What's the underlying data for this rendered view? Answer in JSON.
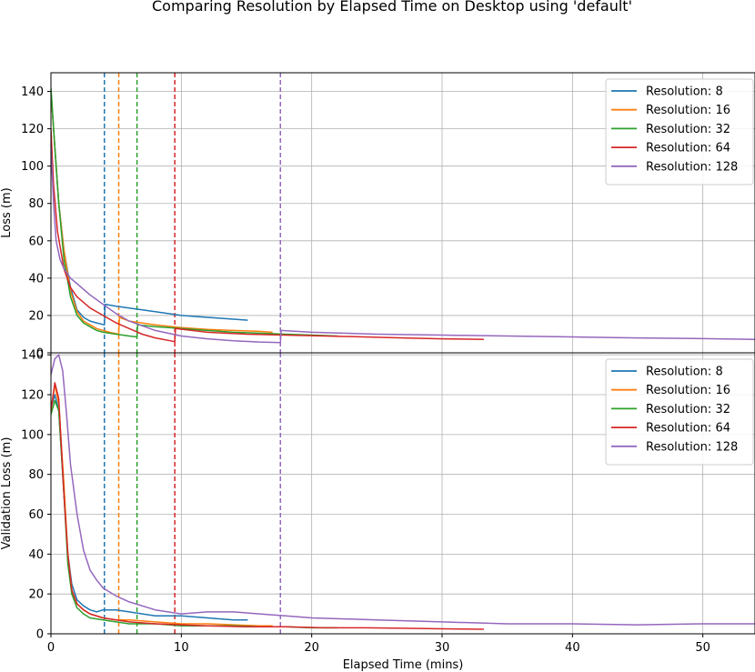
{
  "chart_data": {
    "type": "line",
    "title": "Comparing Resolution by Elapsed Time on Desktop using 'default'",
    "xlabel": "Elapsed Time (mins)",
    "xlim": [
      0,
      54
    ],
    "xticks": [
      "0",
      "10",
      "20",
      "30",
      "40",
      "50"
    ],
    "xtick_values": [
      0,
      10,
      20,
      30,
      40,
      50
    ],
    "grid": true,
    "legend_position": "top-right",
    "colors": {
      "Resolution: 8": "#1f77b4",
      "Resolution: 16": "#ff7f0e",
      "Resolution: 32": "#2ca02c",
      "Resolution: 64": "#d62728",
      "Resolution: 128": "#9467bd"
    },
    "vlines": [
      {
        "name": "Resolution: 8",
        "x": 4.1
      },
      {
        "name": "Resolution: 16",
        "x": 5.2
      },
      {
        "name": "Resolution: 32",
        "x": 6.6
      },
      {
        "name": "Resolution: 64",
        "x": 9.5
      },
      {
        "name": "Resolution: 128",
        "x": 17.6
      }
    ],
    "panels": [
      {
        "ylabel": "Loss (m)",
        "ylim": [
          0,
          150
        ],
        "yticks": [
          "0",
          "20",
          "40",
          "60",
          "80",
          "100",
          "120",
          "140"
        ],
        "ytick_values": [
          0,
          20,
          40,
          60,
          80,
          100,
          120,
          140
        ],
        "series": [
          {
            "name": "Resolution: 8",
            "x": [
              0,
              0.3,
              0.6,
              1.0,
              1.5,
              2.0,
              2.5,
              3.0,
              3.5,
              4.1,
              4.15,
              5,
              6,
              8,
              10,
              12,
              14,
              15.1
            ],
            "y": [
              140,
              110,
              80,
              55,
              35,
              23,
              19,
              17,
              16,
              15,
              26,
              25,
              24,
              22,
              20,
              19,
              18,
              17.5
            ]
          },
          {
            "name": "Resolution: 16",
            "x": [
              0,
              0.3,
              0.6,
              1.0,
              1.5,
              2.0,
              2.5,
              3,
              3.5,
              4,
              4.5,
              5.2,
              5.25,
              6,
              8,
              10,
              12,
              14,
              16,
              17
            ],
            "y": [
              140,
              110,
              80,
              55,
              33,
              22,
              17,
              15,
              13,
              12,
              11,
              10,
              19,
              17,
              15,
              13.5,
              12.5,
              12,
              11.5,
              11
            ]
          },
          {
            "name": "Resolution: 32",
            "x": [
              0,
              0.3,
              0.6,
              1.0,
              1.5,
              2.0,
              2.5,
              3,
              3.5,
              4,
              5,
              6,
              6.6,
              6.65,
              8,
              10,
              12,
              14,
              16,
              18,
              20,
              22
            ],
            "y": [
              142,
              110,
              80,
              50,
              30,
              20,
              16,
              14,
              12,
              11,
              10,
              9,
              8.5,
              15,
              14,
              13,
              12,
              11,
              10.5,
              10,
              9.5,
              9
            ]
          },
          {
            "name": "Resolution: 64",
            "x": [
              0,
              0.2,
              0.5,
              1.0,
              1.5,
              2.0,
              3,
              4,
              5,
              6,
              7,
              8,
              9.5,
              9.55,
              12,
              15,
              18,
              21,
              24,
              27,
              30,
              33.2
            ],
            "y": [
              120,
              90,
              65,
              45,
              35,
              30,
              24,
              20,
              16,
              13,
              10,
              8,
              6,
              13,
              11,
              10,
              9.5,
              9,
              8.5,
              8,
              7.5,
              7.2
            ]
          },
          {
            "name": "Resolution: 128",
            "x": [
              0,
              0.2,
              0.4,
              0.7,
              1.0,
              1.5,
              2,
              3,
              4,
              5,
              6,
              8,
              10,
              12,
              14,
              16,
              17.6,
              17.65,
              20,
              25,
              30,
              35,
              40,
              45,
              50,
              54
            ],
            "y": [
              110,
              80,
              60,
              50,
              45,
              40,
              37,
              31,
              26,
              21,
              17,
              12,
              9,
              7.5,
              6.5,
              5.8,
              5.5,
              12,
              11,
              10,
              9.5,
              9,
              8.5,
              8,
              7.6,
              7.2
            ]
          }
        ]
      },
      {
        "ylabel": "Validation Loss (m)",
        "ylim": [
          0,
          141
        ],
        "yticks": [
          "0",
          "20",
          "40",
          "60",
          "80",
          "100",
          "120",
          "140"
        ],
        "ytick_values": [
          0,
          20,
          40,
          60,
          80,
          100,
          120,
          140
        ],
        "series": [
          {
            "name": "Resolution: 8",
            "x": [
              0,
              0.3,
              0.6,
              1.0,
              1.3,
              1.6,
              2.0,
              2.5,
              3,
              3.5,
              4,
              5,
              6,
              8,
              10,
              12,
              14,
              15.1
            ],
            "y": [
              113,
              120,
              112,
              70,
              40,
              25,
              17,
              14,
              12,
              11,
              12,
              12,
              11,
              9,
              9,
              8,
              7,
              7
            ]
          },
          {
            "name": "Resolution: 16",
            "x": [
              0,
              0.3,
              0.6,
              1.0,
              1.3,
              1.6,
              2.0,
              2.5,
              3,
              4,
              5,
              6,
              8,
              10,
              12,
              14,
              16,
              17
            ],
            "y": [
              112,
              125,
              115,
              75,
              40,
              22,
              15,
              12,
              10,
              8,
              7,
              7,
              6,
              5,
              5,
              4.5,
              4,
              4
            ]
          },
          {
            "name": "Resolution: 32",
            "x": [
              0,
              0.3,
              0.6,
              1.0,
              1.3,
              1.6,
              2.0,
              2.5,
              3,
              4,
              5,
              6,
              8,
              10,
              12,
              14,
              16,
              18,
              20,
              22
            ],
            "y": [
              110,
              117,
              112,
              70,
              35,
              20,
              13,
              10,
              8,
              7,
              6,
              5,
              5,
              4,
              4,
              4,
              3.5,
              3.5,
              3,
              3
            ]
          },
          {
            "name": "Resolution: 64",
            "x": [
              0,
              0.3,
              0.6,
              1.0,
              1.3,
              1.6,
              2.0,
              2.5,
              3,
              4,
              5,
              6,
              8,
              10,
              12,
              15,
              18,
              21,
              24,
              27,
              30,
              33.2
            ],
            "y": [
              112,
              126,
              118,
              70,
              40,
              22,
              15,
              12,
              10,
              8,
              7,
              6,
              5,
              4.5,
              4,
              3.5,
              3.5,
              3,
              3,
              2.8,
              2.5,
              2.3
            ]
          },
          {
            "name": "Resolution: 128",
            "x": [
              0,
              0.3,
              0.6,
              0.9,
              1.2,
              1.5,
              2,
              2.5,
              3,
              3.5,
              4,
              5,
              6,
              8,
              10,
              12,
              14,
              16,
              18,
              20,
              25,
              30,
              35,
              40,
              45,
              50,
              54
            ],
            "y": [
              130,
              138,
              140,
              132,
              110,
              85,
              60,
              42,
              32,
              27,
              23,
              19,
              16,
              12,
              10,
              11,
              11,
              10,
              9,
              8,
              7,
              6,
              5,
              5,
              4.5,
              5,
              5
            ]
          }
        ]
      }
    ]
  }
}
